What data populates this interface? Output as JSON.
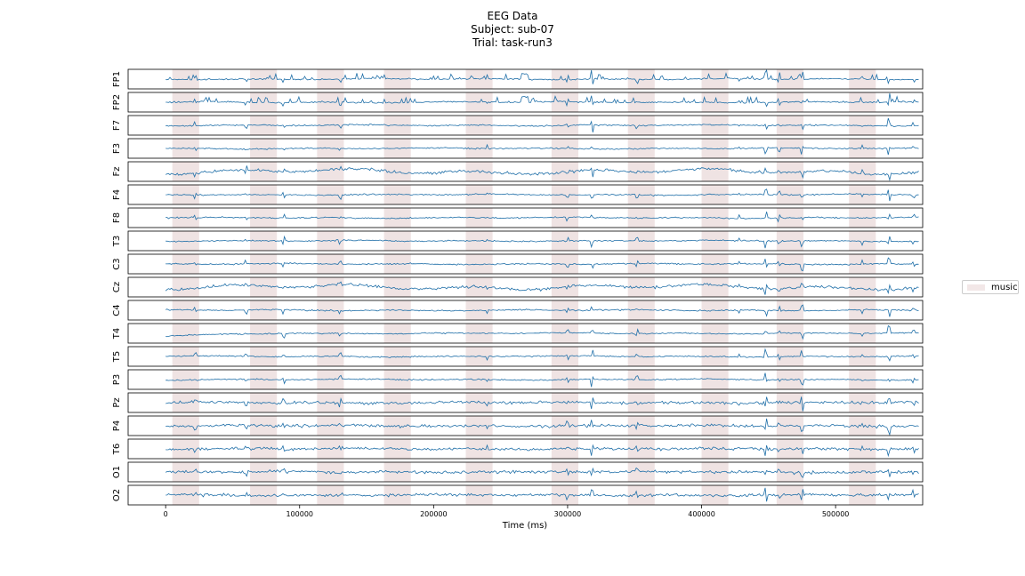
{
  "title_lines": [
    "EEG Data",
    "Subject: sub-07",
    "Trial: task-run3"
  ],
  "legend": {
    "label": "music",
    "color": "#efe3e3"
  },
  "trace_color": "#1f6fa8",
  "chart_data": {
    "type": "line",
    "xlabel": "Time (ms)",
    "xlim": [
      -28000,
      565000
    ],
    "xticks": [
      0,
      100000,
      200000,
      300000,
      400000,
      500000
    ],
    "xtick_labels": [
      "0",
      "100000",
      "200000",
      "300000",
      "400000",
      "500000"
    ],
    "signal_end": 562000,
    "channels": [
      "FP1",
      "FP2",
      "F7",
      "F3",
      "Fz",
      "F4",
      "F8",
      "T3",
      "C3",
      "Cz",
      "C4",
      "T4",
      "T5",
      "P3",
      "Pz",
      "P4",
      "T6",
      "O1",
      "O2"
    ],
    "music_intervals": [
      [
        5000,
        25000
      ],
      [
        63000,
        83000
      ],
      [
        113000,
        133000
      ],
      [
        163000,
        183000
      ],
      [
        224000,
        244000
      ],
      [
        288000,
        308000
      ],
      [
        345000,
        365000
      ],
      [
        400000,
        420000
      ],
      [
        456000,
        476000
      ],
      [
        510000,
        530000
      ]
    ]
  }
}
